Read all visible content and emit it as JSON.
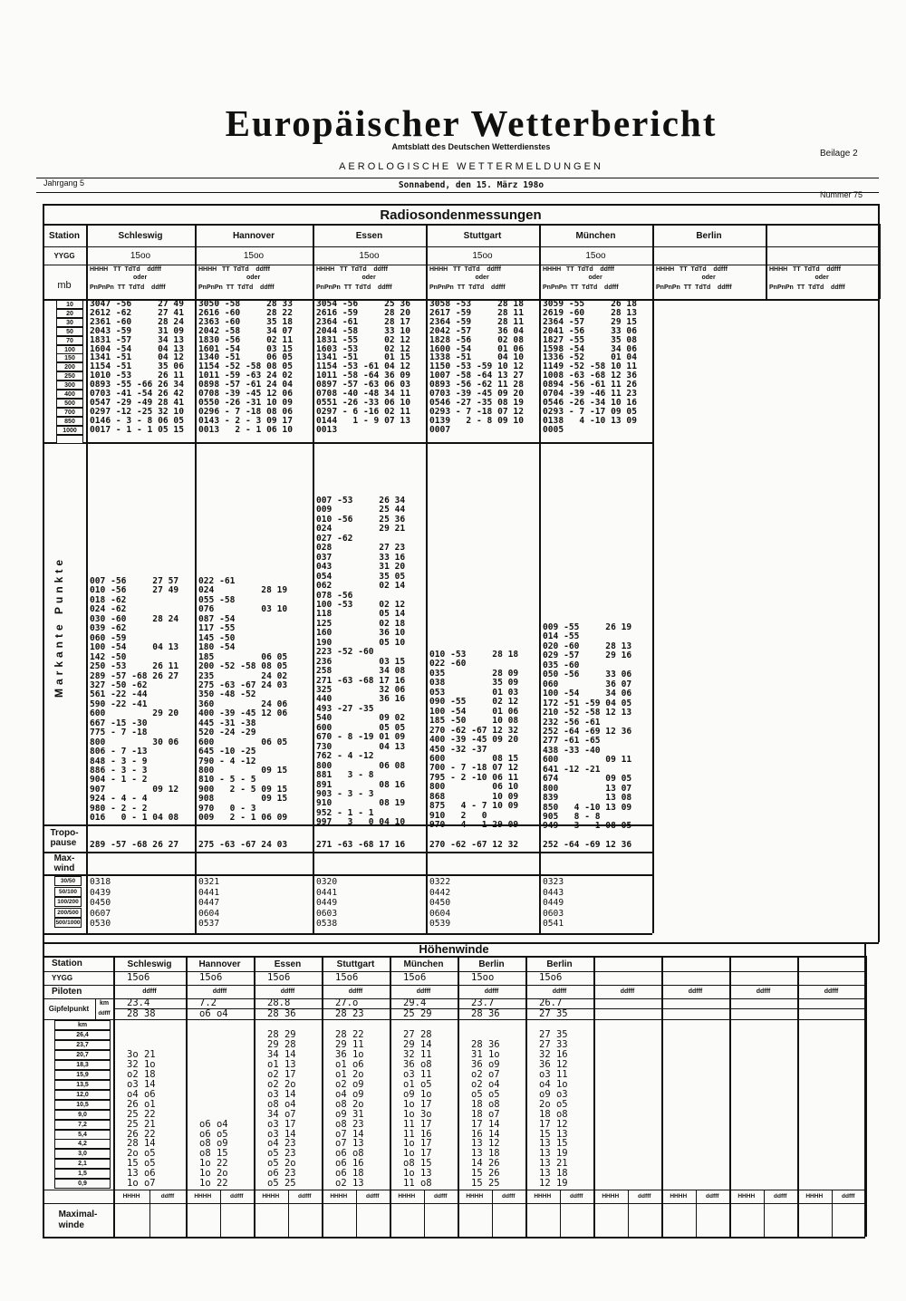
{
  "header": {
    "title": "Europäischer Wetterbericht",
    "subtitle": "Amtsblatt des Deutschen Wetterdienstes",
    "section": "AEROLOGISCHE WETTERMELDUNGEN",
    "supplement": "Beilage 2",
    "volume": "Jahrgang 5",
    "date": "Sonnabend, den 15. März 198o",
    "number": "Nummer 75"
  },
  "radiosonde": {
    "title": "Radiosondenmessungen",
    "station_label": "Station",
    "yygg_label": "YYGG",
    "mb_label": "mb",
    "col_header": {
      "top": "HHHH   TT  TdTd    ddfff",
      "oder": "oder",
      "bottom": "PnPnPn  TT  TdTd    ddfff"
    },
    "mb_levels": [
      "10",
      "20",
      "30",
      "50",
      "70",
      "100",
      "150",
      "200",
      "250",
      "300",
      "400",
      "500",
      "700",
      "850",
      "1000",
      ""
    ],
    "markante_label": "Markante Punkte",
    "tropopause_label": "Tropo-\npause",
    "maxwind_label": "Max-\nwind",
    "shear_labels": [
      "30/50",
      "50/100",
      "100/200",
      "200/500",
      "500/1000"
    ],
    "stations": [
      {
        "name": "Schleswig",
        "yygg": "15oo",
        "std": [
          "3047 -56     27 49",
          "2612 -62     27 41",
          "2361 -60     28 24",
          "2043 -59     31 09",
          "1831 -57     34 13",
          "1604 -54     04 13",
          "1341 -51     04 12",
          "1154 -51     35 06",
          "1010 -53     26 11",
          "0893 -55 -66 26 34",
          "0703 -41 -54 26 42",
          "0547 -29 -49 28 41",
          "0297 -12 -25 32 10",
          "0146 - 3 - 8 06 05",
          "0017 - 1 - 1 05 15"
        ],
        "sig": [
          "007 -56     27 57",
          "010 -56     27 49",
          "018 -62",
          "024 -62",
          "030 -60     28 24",
          "039 -62",
          "060 -59",
          "100 -54     04 13",
          "142 -50",
          "250 -53     26 11",
          "289 -57 -68 26 27",
          "327 -50 -62",
          "561 -22 -44",
          "590 -22 -41",
          "600         29 20",
          "667 -15 -30",
          "775 - 7 -18",
          "800         30 06",
          "806 - 7 -13",
          "848 - 3 - 9",
          "886 - 3 - 3",
          "904 - 1 - 2",
          "907         09 12",
          "924 - 4 - 4",
          "980 - 2 - 2",
          "016   0 - 1 04 08"
        ],
        "tropopause": "289 -57 -68 26 27",
        "shear": [
          "0318",
          "0439",
          "0450",
          "0607",
          "0530"
        ]
      },
      {
        "name": "Hannover",
        "yygg": "15oo",
        "std": [
          "3050 -58     28 33",
          "2616 -60     28 22",
          "2363 -60     35 18",
          "2042 -58     34 07",
          "1830 -56     02 11",
          "1601 -54     03 15",
          "1340 -51     06 05",
          "1154 -52 -58 08 05",
          "1011 -59 -63 24 02",
          "0898 -57 -61 24 04",
          "0708 -39 -45 12 06",
          "0550 -26 -31 10 09",
          "0296 - 7 -18 08 06",
          "0143 - 2 - 3 09 17",
          "0013   2 - 1 06 10"
        ],
        "sig": [
          "022 -61",
          "024         28 19",
          "055 -58",
          "076         03 10",
          "087 -54",
          "117 -55",
          "145 -50",
          "180 -54",
          "185         06 05",
          "200 -52 -58 08 05",
          "235         24 02",
          "275 -63 -67 24 03",
          "350 -48 -52",
          "360         24 06",
          "400 -39 -45 12 06",
          "445 -31 -38",
          "520 -24 -29",
          "600         06 05",
          "645 -10 -25",
          "790 - 4 -12",
          "800         09 15",
          "810 - 5 - 5",
          "900   2 - 5 09 15",
          "908         09 15",
          "970   0 - 3",
          "009   2 - 1 06 09"
        ],
        "tropopause": "275 -63 -67 24 03",
        "shear": [
          "0321",
          "0441",
          "0447",
          "0604",
          "0537"
        ]
      },
      {
        "name": "Essen",
        "yygg": "15oo",
        "std": [
          "3054 -56     25 36",
          "2616 -59     28 20",
          "2364 -61     28 17",
          "2044 -58     33 10",
          "1831 -55     02 12",
          "1603 -53     02 12",
          "1341 -51     01 15",
          "1154 -53 -61 04 12",
          "1011 -58 -64 36 09",
          "0897 -57 -63 06 03",
          "0708 -40 -48 34 11",
          "0551 -26 -33 06 10",
          "0297 - 6 -16 02 11",
          "0144   1 - 9 07 13",
          "0013"
        ],
        "sig": [
          "007 -53     26 34",
          "009         25 44",
          "010 -56     25 36",
          "024         29 21",
          "027 -62",
          "028         27 23",
          "037         33 16",
          "043         31 20",
          "054         35 05",
          "062         02 14",
          "078 -56",
          "100 -53     02 12",
          "118         05 14",
          "125         02 18",
          "160         36 10",
          "190         05 10",
          "223 -52 -60",
          "236         03 15",
          "258         34 08",
          "271 -63 -68 17 16",
          "325         32 06",
          "440         36 16",
          "493 -27 -35",
          "540         09 02",
          "600         05 05",
          "670 - 8 -19 01 09",
          "730         04 13",
          "762 - 4 -12",
          "800         06 08",
          "881   3 - 8",
          "891         08 16",
          "903 - 3 - 3",
          "910         08 19",
          "952 - 1 - 1",
          "997   3   0 04 10"
        ],
        "tropopause": "271 -63 -68 17 16",
        "shear": [
          "0320",
          "0441",
          "0449",
          "0603",
          "0538"
        ]
      },
      {
        "name": "Stuttgart",
        "yygg": "15oo",
        "std": [
          "3058 -53     28 18",
          "2617 -59     28 11",
          "2364 -59     28 11",
          "2042 -57     36 04",
          "1828 -56     02 08",
          "1600 -54     01 06",
          "1338 -51     04 10",
          "1150 -53 -59 10 12",
          "1007 -58 -64 13 27",
          "0893 -56 -62 11 28",
          "0703 -39 -45 09 20",
          "0546 -27 -35 08 19",
          "0293 - 7 -18 07 12",
          "0139   2 - 8 09 10",
          "0007"
        ],
        "sig": [
          "010 -53     28 18",
          "022 -60",
          "035         28 09",
          "038         35 09",
          "053         01 03",
          "090 -55     02 12",
          "100 -54     01 06",
          "185 -50     10 08",
          "270 -62 -67 12 32",
          "400 -39 -45 09 20",
          "450 -32 -37",
          "600         08 15",
          "700 - 7 -18 07 12",
          "795 - 2 -10 06 11",
          "800         06 10",
          "868         10 09",
          "875   4 - 7 10 09",
          "910   2   0",
          "970   4   1 29 09"
        ],
        "tropopause": "270 -62 -67 12 32",
        "shear": [
          "0322",
          "0442",
          "0450",
          "0604",
          "0539"
        ]
      },
      {
        "name": "München",
        "yygg": "15oo",
        "std": [
          "3059 -55     26 18",
          "2619 -60     28 13",
          "2364 -57     29 15",
          "2041 -56     33 06",
          "1827 -55     35 08",
          "1598 -54     34 06",
          "1336 -52     01 04",
          "1149 -52 -58 10 11",
          "1008 -63 -68 12 36",
          "0894 -56 -61 11 26",
          "0704 -39 -46 11 23",
          "0546 -26 -34 10 16",
          "0293 - 7 -17 09 05",
          "0138   4 -10 13 09",
          "0005"
        ],
        "sig": [
          "009 -55     26 19",
          "014 -55",
          "020 -60     28 13",
          "029 -57     29 16",
          "035 -60",
          "050 -56     33 06",
          "060         36 07",
          "100 -54     34 06",
          "172 -51 -59 04 05",
          "210 -52 -58 12 13",
          "232 -56 -61",
          "252 -64 -69 12 36",
          "277 -61 -65",
          "438 -33 -40",
          "600         09 11",
          "641 -12 -21",
          "674         09 05",
          "800         13 07",
          "839         13 08",
          "850   4 -10 13 09",
          "905   8 - 8",
          "949   3 - 1 08 05"
        ],
        "tropopause": "252 -64 -69 12 36",
        "shear": [
          "0323",
          "0443",
          "0449",
          "0603",
          "0541"
        ]
      },
      {
        "name": "Berlin",
        "yygg": "",
        "std": [],
        "sig": [],
        "tropopause": "",
        "shear": []
      },
      {
        "name": "",
        "yygg": "",
        "std": [],
        "sig": [],
        "tropopause": "",
        "shear": []
      }
    ]
  },
  "hoehenwinde": {
    "title": "Höhenwinde",
    "station_label": "Station",
    "yygg_label": "YYGG",
    "piloten_label": "Piloten",
    "piloten_unit": "ddfff",
    "gipfel_label": "Gipfelpunkt",
    "km_label": "km",
    "ddfff_label": "ddfff",
    "hhhh_label": "HHHH",
    "maxwind_label": "Maximal-\nwinde",
    "km_levels": [
      "26,4",
      "23,7",
      "20,7",
      "18,3",
      "15,9",
      "13,5",
      "12,0",
      "10,5",
      "9,0",
      "7,2",
      "5,4",
      "4,2",
      "3,0",
      "2,1",
      "1,5",
      "0,9"
    ],
    "stations": [
      {
        "name": "Schleswig",
        "yygg": "15o6",
        "gipfel_km": "23.4",
        "gipfel_ddfff": "28 38",
        "winds": [
          "",
          "",
          "3o 21",
          "32 1o",
          "o2 18",
          "o3 14",
          "o4 o6",
          "26 o1",
          "25 22",
          "25 21",
          "26 22",
          "28 14",
          "2o o5",
          "15 o5",
          "13 o6",
          "1o o7"
        ]
      },
      {
        "name": "Hannover",
        "yygg": "15o6",
        "gipfel_km": "7.2",
        "gipfel_ddfff": "o6 o4",
        "winds": [
          "",
          "",
          "",
          "",
          "",
          "",
          "",
          "",
          "",
          "o6 o4",
          "o6 o5",
          "o8 o9",
          "o8 15",
          "1o 22",
          "1o 2o",
          "1o 22"
        ]
      },
      {
        "name": "Essen",
        "yygg": "15o6",
        "gipfel_km": "28.8",
        "gipfel_ddfff": "28 36",
        "winds": [
          "28 29",
          "29 28",
          "34 14",
          "o1 13",
          "o2 17",
          "o2 2o",
          "o3 14",
          "o8 o4",
          "34 o7",
          "o3 17",
          "o3 14",
          "o4 23",
          "o5 23",
          "o5 2o",
          "o6 23",
          "o5 25"
        ]
      },
      {
        "name": "Stuttgart",
        "yygg": "15o6",
        "gipfel_km": "27.o",
        "gipfel_ddfff": "28 23",
        "winds": [
          "28 22",
          "29 11",
          "36 1o",
          "o1 o6",
          "o1 2o",
          "o2 o9",
          "o4 o9",
          "o8 2o",
          "o9 31",
          "o8 23",
          "o7 14",
          "o7 13",
          "o6 o8",
          "o6 16",
          "o6 18",
          "o2 13"
        ]
      },
      {
        "name": "München",
        "yygg": "15o6",
        "gipfel_km": "29.4",
        "gipfel_ddfff": "25 29",
        "winds": [
          "27 28",
          "29 14",
          "32 11",
          "36 o8",
          "o3 11",
          "o1 o5",
          "o9 1o",
          "1o 17",
          "1o 3o",
          "11 17",
          "11 16",
          "1o 17",
          "1o 17",
          "o8 15",
          "1o 13",
          "11 o8"
        ]
      },
      {
        "name": "Berlin",
        "yygg": "15oo",
        "gipfel_km": "23.7",
        "gipfel_ddfff": "28 36",
        "winds": [
          "",
          "28 36",
          "31 1o",
          "36 o9",
          "o2 o7",
          "o2 o4",
          "o5 o5",
          "18 o8",
          "18 o7",
          "17 14",
          "16 14",
          "13 12",
          "13 18",
          "14 26",
          "15 26",
          "15 25"
        ]
      },
      {
        "name": "Berlin",
        "yygg": "15o6",
        "gipfel_km": "26.7",
        "gipfel_ddfff": "27 35",
        "winds": [
          "27 35",
          "27 33",
          "32 16",
          "36 12",
          "o3 11",
          "o4 1o",
          "o9 o3",
          "2o o5",
          "18 o8",
          "17 12",
          "15 13",
          "13 15",
          "13 19",
          "13 21",
          "13 18",
          "12 19"
        ]
      },
      {
        "name": "",
        "yygg": "",
        "gipfel_km": "",
        "gipfel_ddfff": "",
        "winds": []
      },
      {
        "name": "",
        "yygg": "",
        "gipfel_km": "",
        "gipfel_ddfff": "",
        "winds": []
      },
      {
        "name": "",
        "yygg": "",
        "gipfel_km": "",
        "gipfel_ddfff": "",
        "winds": []
      },
      {
        "name": "",
        "yygg": "",
        "gipfel_km": "",
        "gipfel_ddfff": "",
        "winds": []
      }
    ]
  }
}
